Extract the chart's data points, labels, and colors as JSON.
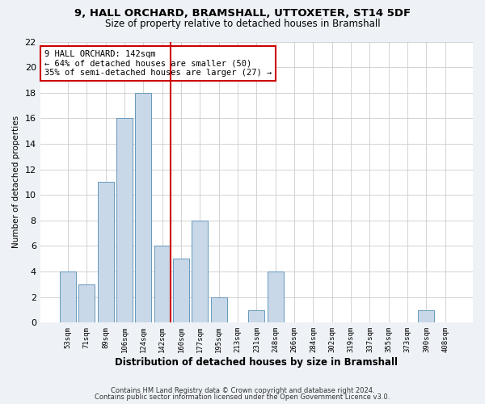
{
  "title1": "9, HALL ORCHARD, BRAMSHALL, UTTOXETER, ST14 5DF",
  "title2": "Size of property relative to detached houses in Bramshall",
  "xlabel": "Distribution of detached houses by size in Bramshall",
  "ylabel": "Number of detached properties",
  "bar_labels": [
    "53sqm",
    "71sqm",
    "89sqm",
    "106sqm",
    "124sqm",
    "142sqm",
    "160sqm",
    "177sqm",
    "195sqm",
    "213sqm",
    "231sqm",
    "248sqm",
    "266sqm",
    "284sqm",
    "302sqm",
    "319sqm",
    "337sqm",
    "355sqm",
    "373sqm",
    "390sqm",
    "408sqm"
  ],
  "bar_values": [
    4,
    3,
    11,
    16,
    18,
    6,
    5,
    8,
    2,
    0,
    1,
    4,
    0,
    0,
    0,
    0,
    0,
    0,
    0,
    1,
    0
  ],
  "bar_color": "#c8d8e8",
  "bar_edge_color": "#6699bb",
  "highlight_index": 5,
  "highlight_line_color": "#cc0000",
  "ylim": [
    0,
    22
  ],
  "yticks": [
    0,
    2,
    4,
    6,
    8,
    10,
    12,
    14,
    16,
    18,
    20,
    22
  ],
  "annotation_title": "9 HALL ORCHARD: 142sqm",
  "annotation_line1": "← 64% of detached houses are smaller (50)",
  "annotation_line2": "35% of semi-detached houses are larger (27) →",
  "annotation_box_color": "#cc0000",
  "footer1": "Contains HM Land Registry data © Crown copyright and database right 2024.",
  "footer2": "Contains public sector information licensed under the Open Government Licence v3.0.",
  "bg_color": "#eef2f6",
  "plot_bg_color": "#ffffff"
}
